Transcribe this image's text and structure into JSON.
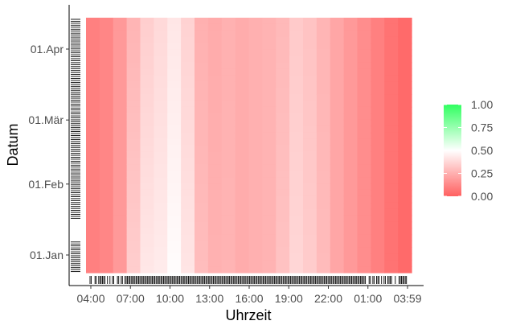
{
  "chart_data": {
    "type": "heatmap",
    "title": "",
    "xlabel": "Uhrzeit",
    "ylabel": "Datum",
    "x_ticks": [
      "04:00",
      "07:00",
      "10:00",
      "13:00",
      "16:00",
      "19:00",
      "22:00",
      "01:00",
      "03:59"
    ],
    "y_ticks": [
      "01.Jan",
      "01.Feb",
      "01.Mär",
      "01.Apr"
    ],
    "x_range_hours": [
      4,
      28
    ],
    "y_range_days_from_jan1": [
      -10,
      100
    ],
    "y_tick_days_from_jan1": [
      0,
      31,
      59,
      90
    ],
    "column_start_hours": [
      4,
      5,
      6,
      7,
      8,
      9,
      10,
      11,
      12,
      13,
      14,
      15,
      16,
      17,
      18,
      19,
      20,
      21,
      22,
      23,
      24,
      25,
      26,
      27
    ],
    "column_values": [
      0.1,
      0.12,
      0.18,
      0.32,
      0.4,
      0.42,
      0.47,
      0.4,
      0.28,
      0.25,
      0.26,
      0.24,
      0.25,
      0.26,
      0.3,
      0.36,
      0.33,
      0.28,
      0.22,
      0.18,
      0.14,
      0.1,
      0.06,
      0.03
    ],
    "column_drift_per_day": [
      0,
      0,
      0,
      -0.0008,
      -0.0008,
      -0.0006,
      -0.0007,
      -0.0006,
      -0.0004,
      -0.0002,
      -0.0001,
      0,
      0,
      0,
      -0.0003,
      -0.0004,
      -0.0003,
      -0.0002,
      0,
      0,
      0,
      0,
      0,
      0
    ],
    "rows": 40,
    "legend": {
      "position": "right",
      "labels": [
        "1.00",
        "0.75",
        "0.50",
        "0.25",
        "0.00"
      ],
      "values": [
        1.0,
        0.75,
        0.5,
        0.25,
        0.0
      ],
      "colors": {
        "low": "#ff6060",
        "mid": "#ffffff",
        "high": "#30ff60"
      }
    },
    "grid": false
  }
}
